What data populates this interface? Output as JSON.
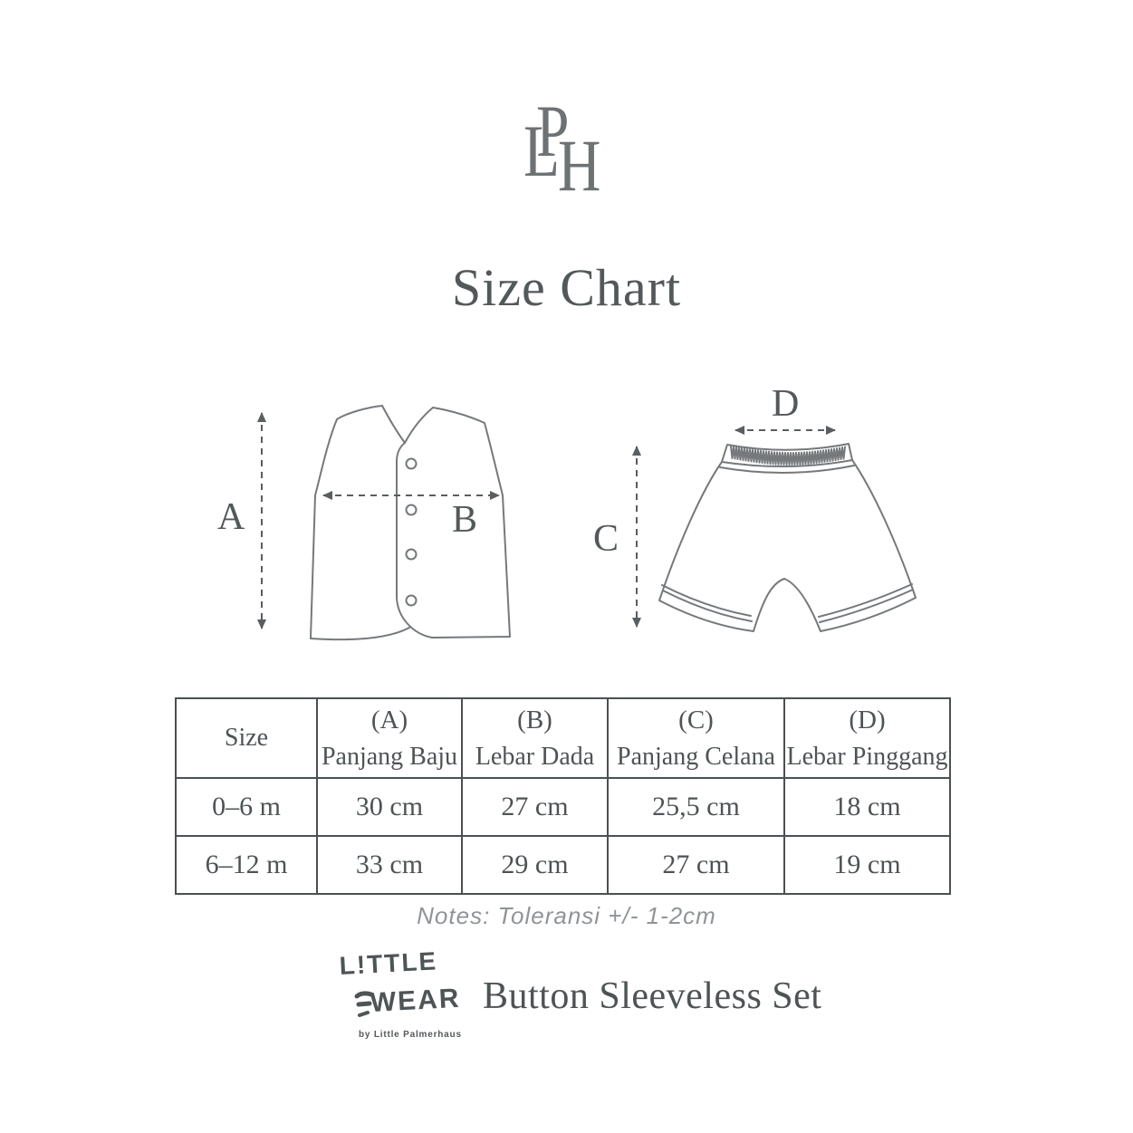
{
  "colors": {
    "background": "#ffffff",
    "text": "#4e5355",
    "title": "#53585a",
    "garment_outline": "#75797c",
    "arrow": "#595e60",
    "table_border": "#4b5052",
    "notes": "#8f9496",
    "brand": "#4f5456"
  },
  "header": {
    "monogram": {
      "l": "L",
      "p": "P",
      "h": "H"
    },
    "title": "Size Chart"
  },
  "diagram": {
    "vest": {
      "vertical_label": "A",
      "horizontal_label": "B"
    },
    "shorts": {
      "vertical_label": "C",
      "horizontal_label": "D"
    }
  },
  "table": {
    "columns": [
      {
        "code": "",
        "label": "Size"
      },
      {
        "code": "(A)",
        "label": "Panjang Baju"
      },
      {
        "code": "(B)",
        "label": "Lebar Dada"
      },
      {
        "code": "(C)",
        "label": "Panjang Celana"
      },
      {
        "code": "(D)",
        "label": "Lebar Pinggang"
      }
    ],
    "rows": [
      {
        "size": "0–6 m",
        "a": "30 cm",
        "b": "27 cm",
        "c": "25,5 cm",
        "d": "18 cm"
      },
      {
        "size": "6–12 m",
        "a": "33 cm",
        "b": "29 cm",
        "c": "27 cm",
        "d": "19 cm"
      }
    ]
  },
  "notes": "Notes: Toleransi +/- 1-2cm",
  "footer": {
    "brand_line1": "L!TTLE",
    "brand_line2": "WEAR",
    "brand_byline": "by Little Palmerhaus",
    "product": "Button Sleeveless Set"
  }
}
